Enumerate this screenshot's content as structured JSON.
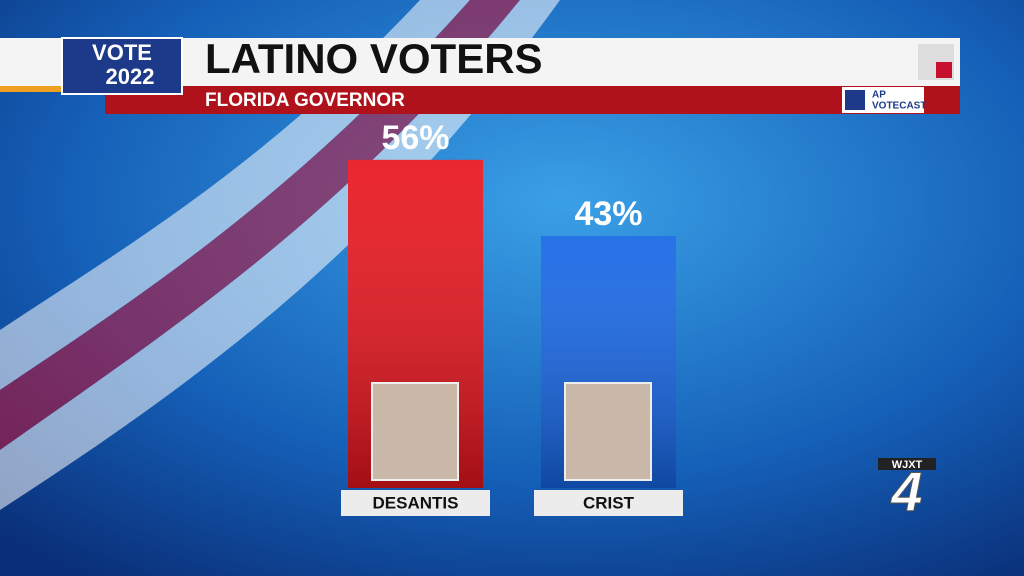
{
  "chart_data": {
    "type": "bar",
    "title": "LATINO VOTERS",
    "subtitle": "FLORIDA GOVERNOR",
    "categories": [
      "DESANTIS",
      "CRIST"
    ],
    "values": [
      56,
      43
    ],
    "value_labels": [
      "56%",
      "43%"
    ],
    "colors": [
      "#e8141c",
      "#1566e6"
    ]
  },
  "badge": {
    "line1": "VOTE",
    "line2": "2022"
  },
  "source": {
    "line1": "AP",
    "line2": "VOTECAST"
  },
  "station": {
    "call_sign": "WJXT",
    "channel": "4"
  }
}
